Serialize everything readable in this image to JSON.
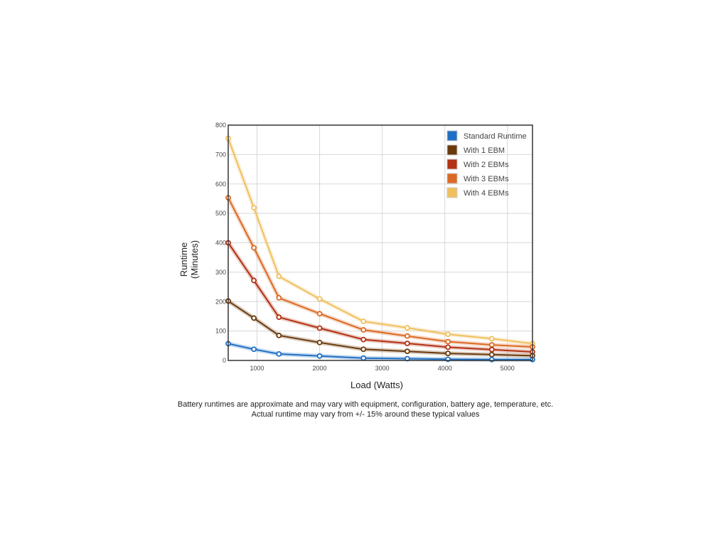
{
  "chart_data": {
    "type": "line",
    "title": "",
    "xlabel": "Load (Watts)",
    "ylabel_lines": [
      "Runtime",
      "(Minutes)"
    ],
    "xlim": [
      540,
      5400
    ],
    "ylim": [
      0,
      800
    ],
    "xticks": [
      1000,
      2000,
      3000,
      4000,
      5000
    ],
    "yticks": [
      0,
      100,
      200,
      300,
      400,
      500,
      600,
      700,
      800
    ],
    "grid": true,
    "legend_position": "top-right",
    "x": [
      540,
      950,
      1350,
      2000,
      2700,
      3400,
      4050,
      4750,
      5400
    ],
    "series": [
      {
        "name": "Standard Runtime",
        "color": "#1f6fc5",
        "values": [
          57,
          38,
          22,
          15,
          8,
          6,
          4,
          3,
          3
        ]
      },
      {
        "name": "With 1 EBM",
        "color": "#6b3a0c",
        "values": [
          202,
          144,
          85,
          61,
          38,
          31,
          24,
          20,
          16
        ]
      },
      {
        "name": "With 2 EBMs",
        "color": "#b23214",
        "values": [
          400,
          272,
          147,
          110,
          71,
          58,
          45,
          37,
          29
        ]
      },
      {
        "name": "With 3 EBMs",
        "color": "#dc6a24",
        "values": [
          553,
          383,
          213,
          159,
          104,
          83,
          64,
          53,
          46
        ]
      },
      {
        "name": "With 4 EBMs",
        "color": "#f0c060",
        "values": [
          755,
          519,
          286,
          209,
          133,
          111,
          89,
          74,
          57
        ]
      }
    ]
  },
  "footnote": {
    "line1": "Battery runtimes are approximate and may vary with equipment, configuration, battery age, temperature, etc.",
    "line2": "Actual runtime may vary from +/- 15% around these typical values"
  }
}
